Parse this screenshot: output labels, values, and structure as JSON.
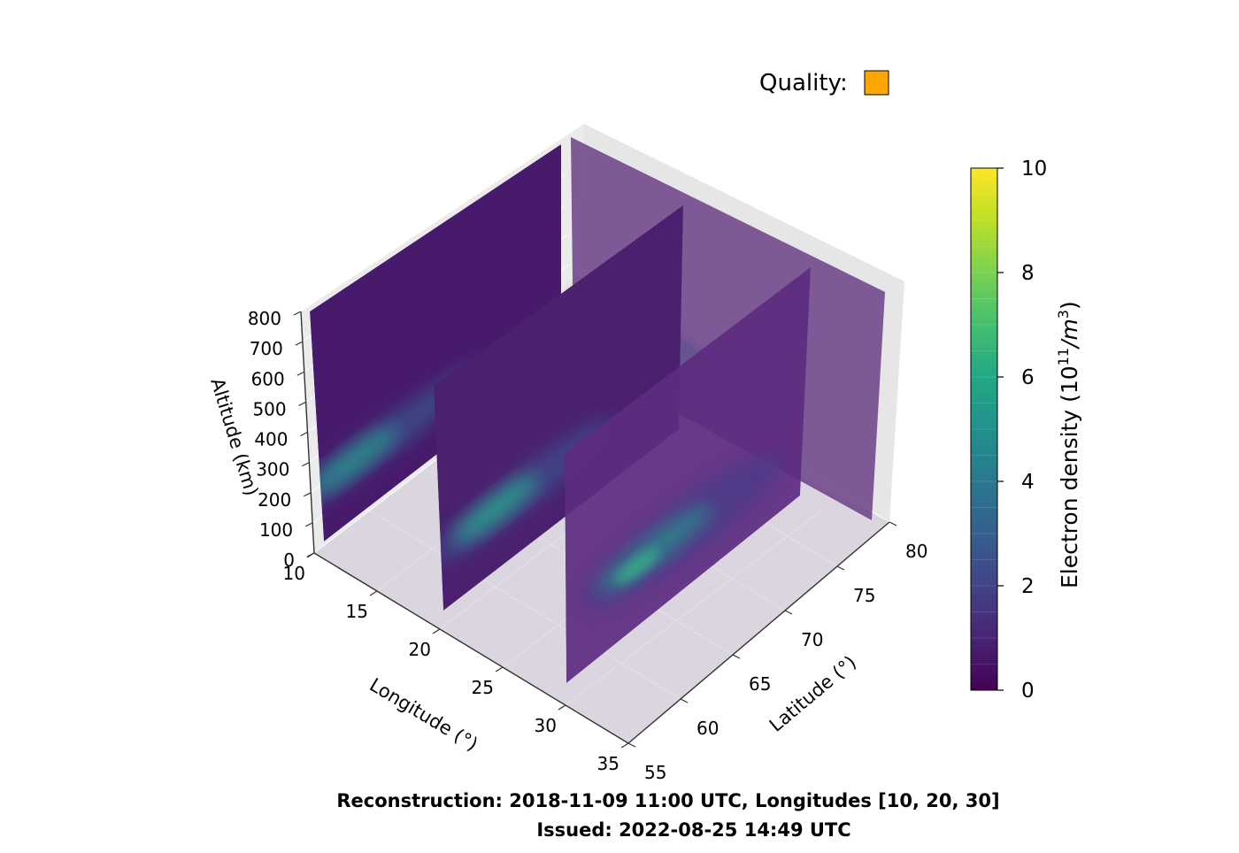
{
  "quality": {
    "label": "Quality:",
    "color": "#ffa500"
  },
  "footer": {
    "line1": "Reconstruction: 2018-11-09 11:00 UTC, Longitudes [10, 20, 30]",
    "line2": "Issued: 2022-08-25 14:49 UTC"
  },
  "chart_data": {
    "type": "heatmap",
    "subtype": "3d-slices",
    "colormap": "viridis",
    "axes": {
      "x": {
        "label": "Longitude (°)",
        "range": [
          10,
          35
        ],
        "ticks": [
          "10",
          "15",
          "20",
          "25",
          "30",
          "35"
        ]
      },
      "y": {
        "label": "Latitude (°)",
        "range": [
          55,
          80
        ],
        "ticks": [
          "55",
          "60",
          "65",
          "70",
          "75",
          "80"
        ]
      },
      "z": {
        "label": "Altitude (km)",
        "range": [
          0,
          800
        ],
        "ticks": [
          "0",
          "100",
          "200",
          "300",
          "400",
          "500",
          "600",
          "700",
          "800"
        ]
      }
    },
    "colorbar": {
      "label_prefix": "Electron density  (10",
      "label_exp1": "11",
      "label_mid": "/m",
      "label_exp2": "3",
      "label_suffix": ")",
      "range": [
        0,
        10
      ],
      "ticks": [
        "0",
        "2",
        "4",
        "6",
        "8",
        "10"
      ],
      "levels": 20
    },
    "slices": [
      {
        "plane": "longitude",
        "value": 10,
        "peak_latitude": 57,
        "peak_altitude_km": 300,
        "peak_density": 5.0
      },
      {
        "plane": "longitude",
        "value": 20,
        "peak_latitude": 60,
        "peak_altitude_km": 300,
        "peak_density": 5.5
      },
      {
        "plane": "longitude",
        "value": 30,
        "peak_latitude": 67,
        "peak_altitude_km": 250,
        "peak_density": 5.5
      },
      {
        "plane": "altitude-floor",
        "value": 0,
        "peak_latitude": 68,
        "peak_density": 0.5
      },
      {
        "plane": "latitude-back",
        "value": 80,
        "peak_density": 0.5
      }
    ],
    "grid": true
  }
}
